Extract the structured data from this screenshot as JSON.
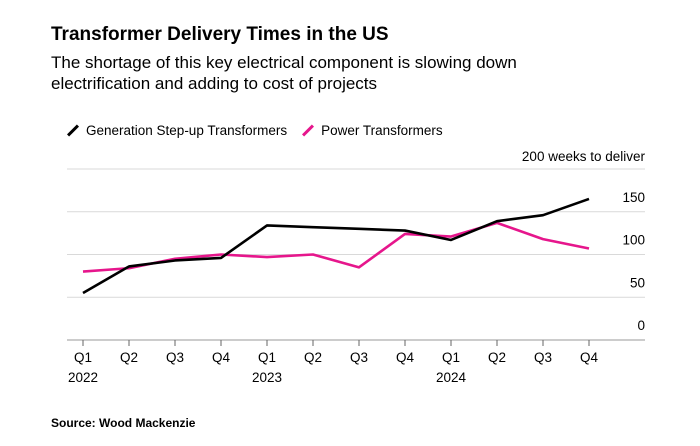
{
  "title": "Transformer Delivery Times in the US",
  "subtitle": "The shortage of this key electrical component is slowing down electrification and adding to cost of projects",
  "source": "Source: Wood Mackenzie",
  "chart_data": {
    "type": "line",
    "categories": [
      "Q1",
      "Q2",
      "Q3",
      "Q4",
      "Q1",
      "Q2",
      "Q3",
      "Q4",
      "Q1",
      "Q2",
      "Q3",
      "Q4"
    ],
    "year_labels": [
      {
        "index": 0,
        "label": "2022"
      },
      {
        "index": 4,
        "label": "2023"
      },
      {
        "index": 8,
        "label": "2024"
      }
    ],
    "ylabel": "200 weeks to deliver",
    "ylim": [
      0,
      200
    ],
    "yticks": [
      0,
      50,
      100,
      150,
      200
    ],
    "ytick_labels": [
      "0",
      "50",
      "100",
      "150",
      "200 weeks to deliver"
    ],
    "grid": true,
    "legend": "top-left",
    "series": [
      {
        "name": "Generation Step-up Transformers",
        "color": "#000000",
        "values": [
          55,
          86,
          93,
          96,
          134,
          132,
          130,
          128,
          117,
          139,
          146,
          165
        ]
      },
      {
        "name": "Power Transformers",
        "color": "#e6168c",
        "values": [
          80,
          84,
          95,
          100,
          97,
          100,
          85,
          124,
          121,
          137,
          118,
          107
        ]
      }
    ]
  }
}
